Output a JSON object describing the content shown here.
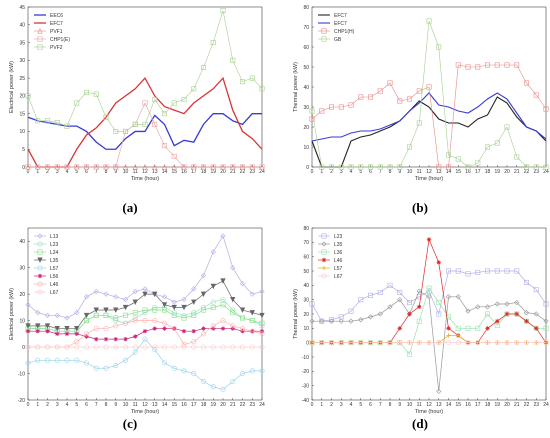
{
  "chart_data": [
    {
      "id": "a",
      "panel_label": "(a)",
      "type": "line",
      "xlabel": "Time (hour)",
      "ylabel": "Electrical power (kW)",
      "xlim": [
        0,
        24
      ],
      "ylim": [
        0,
        45
      ],
      "yticks": [
        0,
        5,
        10,
        15,
        20,
        25,
        30,
        35,
        40,
        45
      ],
      "x": [
        0,
        1,
        2,
        3,
        4,
        5,
        6,
        7,
        8,
        9,
        10,
        11,
        12,
        13,
        14,
        15,
        16,
        17,
        18,
        19,
        20,
        21,
        22,
        23,
        24
      ],
      "legend_position": "top-left",
      "series": [
        {
          "name": "EEC6",
          "color": "#3a3ad6",
          "marker": "none",
          "width": 1.3,
          "values": [
            14,
            13,
            12.5,
            12,
            11.5,
            11.5,
            10,
            7,
            5,
            5,
            8,
            10,
            10,
            14.5,
            12,
            6,
            7.5,
            7,
            12,
            15,
            15,
            13,
            12,
            15,
            15
          ]
        },
        {
          "name": "EFC7",
          "color": "#d83434",
          "marker": "none",
          "width": 1.3,
          "values": [
            5,
            0,
            0,
            0,
            0,
            5,
            9,
            11,
            14,
            18,
            20,
            22,
            25,
            20,
            17,
            16,
            15,
            18,
            20,
            22,
            25,
            16,
            10,
            8,
            5
          ]
        },
        {
          "name": "PVF1",
          "color": "#e88a8a",
          "marker": "triangle",
          "width": 0.6,
          "values": [
            0,
            0,
            0,
            0,
            0,
            0,
            0,
            0,
            0,
            0,
            0,
            0,
            0,
            0,
            0,
            0,
            0,
            0,
            0,
            0,
            0,
            0,
            0,
            0,
            0
          ]
        },
        {
          "name": "CHP1(E)",
          "color": "#e8a0a0",
          "marker": "square",
          "width": 0.6,
          "values": [
            0,
            0,
            0,
            0,
            0,
            0,
            0,
            0,
            0,
            0,
            10,
            12,
            18,
            12,
            6,
            3,
            0,
            0,
            0,
            0,
            0,
            0,
            0,
            0,
            0
          ]
        },
        {
          "name": "PVF2",
          "color": "#a6cf8e",
          "marker": "square",
          "width": 0.6,
          "values": [
            20,
            13,
            13,
            12.5,
            11.5,
            18,
            21,
            20.5,
            14,
            10,
            10,
            12,
            12,
            19,
            15,
            18,
            19,
            22,
            28,
            35,
            44,
            30,
            24,
            25,
            22
          ]
        }
      ]
    },
    {
      "id": "b",
      "panel_label": "(b)",
      "type": "line",
      "xlabel": "Time (hour)",
      "ylabel": "Thermal power (kW)",
      "xlim": [
        0,
        24
      ],
      "ylim": [
        0,
        80
      ],
      "yticks": [
        0,
        10,
        20,
        30,
        40,
        50,
        60,
        70,
        80
      ],
      "x": [
        0,
        1,
        2,
        3,
        4,
        5,
        6,
        7,
        8,
        9,
        10,
        11,
        12,
        13,
        14,
        15,
        16,
        17,
        18,
        19,
        20,
        21,
        22,
        23,
        24
      ],
      "legend_position": "top-left",
      "series": [
        {
          "name": "EFC7",
          "color": "#222222",
          "marker": "none",
          "width": 1.1,
          "values": [
            13,
            0,
            0,
            0,
            13,
            15,
            16,
            18,
            20,
            23,
            28,
            33,
            30,
            24,
            22,
            22,
            20,
            24,
            26,
            35,
            32,
            25,
            20,
            18,
            13
          ]
        },
        {
          "name": "EFC7",
          "color": "#3a3ad6",
          "marker": "none",
          "width": 1.1,
          "values": [
            13,
            14,
            15,
            15,
            17,
            18,
            18,
            19,
            21,
            23,
            28,
            32,
            37,
            31,
            30,
            28,
            27,
            30,
            34,
            37,
            34,
            27,
            20,
            18,
            14
          ]
        },
        {
          "name": "CHP1(H)",
          "color": "#e88a8a",
          "marker": "square",
          "width": 0.6,
          "values": [
            24,
            28,
            30,
            30,
            31,
            35,
            35,
            38,
            42,
            33,
            34,
            38,
            40,
            0,
            0,
            51,
            50,
            50,
            51,
            51,
            51,
            51,
            42,
            36,
            29
          ]
        },
        {
          "name": "GB",
          "color": "#a6cf8e",
          "marker": "square",
          "width": 0.6,
          "values": [
            28,
            0,
            0,
            0,
            0,
            0,
            0,
            0,
            0,
            0,
            10,
            22,
            73,
            60,
            6,
            4,
            0,
            2,
            10,
            12,
            20,
            5,
            0,
            0,
            0
          ]
        }
      ]
    },
    {
      "id": "c",
      "panel_label": "(c)",
      "type": "line",
      "xlabel": "Time (hour)",
      "ylabel": "Electrical power (kW)",
      "xlim": [
        0,
        24
      ],
      "ylim": [
        -20,
        45
      ],
      "yticks": [
        -20,
        -10,
        0,
        10,
        20,
        30,
        40
      ],
      "x": [
        0,
        1,
        2,
        3,
        4,
        5,
        6,
        7,
        8,
        9,
        10,
        11,
        12,
        13,
        14,
        15,
        16,
        17,
        18,
        19,
        20,
        21,
        22,
        23,
        24
      ],
      "legend_position": "top-left",
      "series": [
        {
          "name": "L13",
          "color": "#b0b0e8",
          "marker": "diamond",
          "width": 0.7,
          "values": [
            16,
            13,
            12,
            12,
            11,
            13,
            19,
            21,
            20,
            19,
            18,
            21,
            22,
            20,
            19,
            17,
            18,
            22,
            27,
            36,
            42,
            30,
            24,
            20,
            21
          ]
        },
        {
          "name": "L23",
          "color": "#9be0c8",
          "marker": "circle",
          "width": 0.7,
          "values": [
            7,
            7,
            7,
            6,
            6,
            6,
            10,
            12,
            12,
            10,
            9,
            11,
            13,
            15,
            15,
            13,
            12,
            13,
            15,
            17,
            18,
            14,
            11,
            10,
            8
          ]
        },
        {
          "name": "L24",
          "color": "#88e088",
          "marker": "square",
          "width": 0.7,
          "values": [
            7,
            7,
            7,
            6,
            6,
            6,
            10,
            12,
            12,
            11,
            12,
            13,
            14,
            14,
            14,
            12,
            11,
            12,
            14,
            15,
            16,
            13,
            11,
            10,
            9
          ]
        },
        {
          "name": "L35",
          "color": "#666666",
          "marker": "triangle-down",
          "width": 0.7,
          "values": [
            8,
            8,
            8,
            7,
            7,
            7,
            12,
            14,
            14,
            14,
            15,
            17,
            20,
            20,
            16,
            15,
            15,
            17,
            20,
            23,
            25,
            18,
            14,
            13,
            12
          ]
        },
        {
          "name": "L57",
          "color": "#9bd3e8",
          "marker": "circle",
          "width": 0.7,
          "values": [
            -6,
            -5,
            -5,
            -5,
            -5,
            -5,
            -6,
            -8,
            -8,
            -7,
            -5,
            -2,
            3,
            -1,
            -6,
            -8,
            -9,
            -10,
            -13,
            -15,
            -16,
            -13,
            -10,
            -9,
            -9
          ]
        },
        {
          "name": "L56",
          "color": "#cc2277",
          "marker": "star",
          "width": 0.7,
          "values": [
            6,
            6,
            6,
            5,
            5,
            5,
            4,
            3,
            3,
            3,
            3,
            4,
            6,
            7,
            7,
            7,
            6,
            6,
            7,
            7,
            7,
            7,
            6,
            6,
            6
          ]
        },
        {
          "name": "L46",
          "color": "#ffb0b0",
          "marker": "circle",
          "width": 0.7,
          "values": [
            0,
            0,
            0,
            0,
            0,
            2,
            5,
            7,
            7,
            8,
            9,
            10,
            10,
            10,
            9,
            7,
            1,
            2,
            5,
            8,
            10,
            8,
            7,
            6,
            5
          ]
        },
        {
          "name": "L67",
          "color": "#ffc8c8",
          "marker": "circle",
          "width": 0.7,
          "values": [
            0,
            0,
            0,
            0,
            0,
            0,
            0,
            0,
            0,
            0,
            0,
            0,
            0,
            0,
            0,
            0,
            0,
            0,
            0,
            0,
            0,
            0,
            0,
            0,
            0
          ]
        }
      ]
    },
    {
      "id": "d",
      "panel_label": "(d)",
      "type": "line",
      "xlabel": "Time (hour)",
      "ylabel": "Thermal power (kW)",
      "xlim": [
        0,
        24
      ],
      "ylim": [
        -40,
        80
      ],
      "yticks": [
        -40,
        -30,
        -20,
        -10,
        0,
        10,
        20,
        30,
        40,
        50,
        60,
        70,
        80
      ],
      "x": [
        0,
        1,
        2,
        3,
        4,
        5,
        6,
        7,
        8,
        9,
        10,
        11,
        12,
        13,
        14,
        15,
        16,
        17,
        18,
        19,
        20,
        21,
        22,
        23,
        24
      ],
      "legend_position": "top-left",
      "series": [
        {
          "name": "L23",
          "color": "#b0b0e8",
          "marker": "square",
          "width": 0.7,
          "values": [
            27,
            15,
            16,
            18,
            22,
            30,
            33,
            35,
            40,
            35,
            28,
            32,
            36,
            20,
            50,
            50,
            48,
            49,
            50,
            50,
            50,
            50,
            42,
            37,
            27
          ]
        },
        {
          "name": "L35",
          "color": "#999999",
          "marker": "diamond",
          "width": 0.7,
          "values": [
            15,
            15,
            15,
            15,
            15,
            16,
            18,
            20,
            25,
            30,
            20,
            36,
            32,
            -34,
            32,
            32,
            22,
            25,
            25,
            27,
            27,
            28,
            21,
            20,
            15
          ]
        },
        {
          "name": "L36",
          "color": "#9be0b0",
          "marker": "square",
          "width": 0.7,
          "values": [
            0,
            0,
            0,
            0,
            0,
            0,
            0,
            0,
            0,
            0,
            -8,
            15,
            38,
            28,
            18,
            10,
            10,
            10,
            20,
            12,
            20,
            20,
            15,
            10,
            10
          ]
        },
        {
          "name": "L46",
          "color": "#e02a2a",
          "marker": "star",
          "width": 0.7,
          "values": [
            0,
            0,
            0,
            0,
            0,
            0,
            0,
            0,
            0,
            10,
            20,
            25,
            72,
            56,
            10,
            5,
            0,
            0,
            10,
            15,
            20,
            20,
            15,
            10,
            0
          ]
        },
        {
          "name": "L57",
          "color": "#e8b020",
          "marker": "plus",
          "width": 0.7,
          "values": [
            0,
            0,
            0,
            0,
            0,
            0,
            0,
            0,
            0,
            0,
            0,
            0,
            0,
            0,
            5,
            5,
            0,
            0,
            0,
            0,
            0,
            0,
            0,
            0,
            0
          ]
        },
        {
          "name": "L67",
          "color": "#ffc8c8",
          "marker": "circle",
          "width": 0.7,
          "values": [
            0,
            0,
            0,
            0,
            0,
            0,
            0,
            0,
            0,
            0,
            0,
            0,
            0,
            0,
            0,
            0,
            0,
            0,
            0,
            0,
            0,
            0,
            0,
            0,
            0
          ]
        }
      ]
    }
  ]
}
